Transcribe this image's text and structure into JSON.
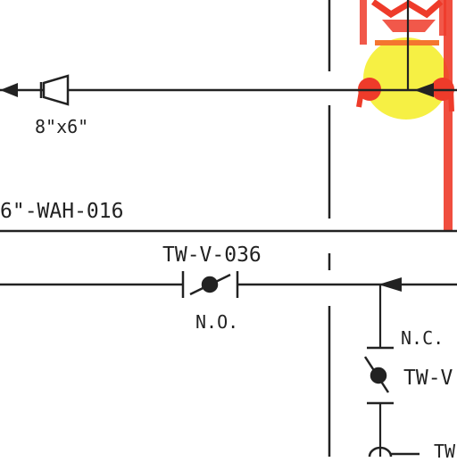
{
  "diagram": {
    "labels": {
      "reducer_size": "8\"x6\"",
      "line_tag": "6\"-WAH-016",
      "valve_top": "TW-V-036",
      "valve_top_state": "N.O.",
      "valve_right_state": "N.C.",
      "valve_right_tag": "TW-V",
      "bottom_tag": "TW"
    },
    "colors": {
      "line": "#222222",
      "markup_red": "#ee3b2a",
      "markup_orange": "#f4752f",
      "markup_yellow": "#f5ef3a"
    }
  }
}
